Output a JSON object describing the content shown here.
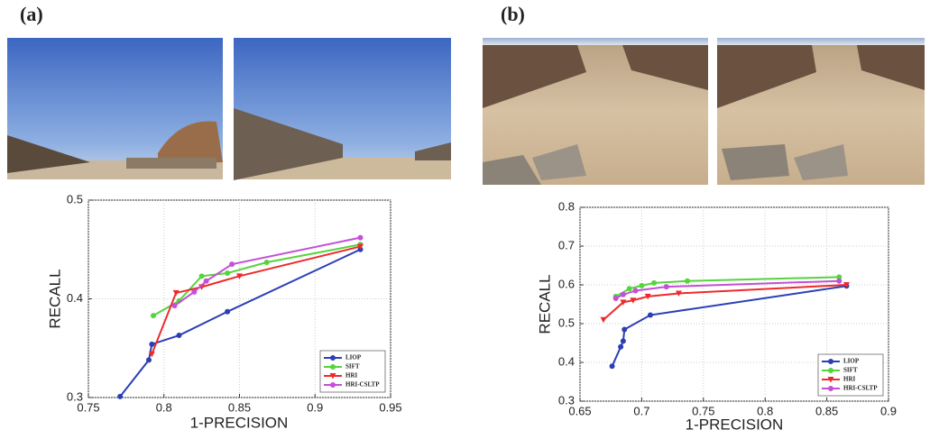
{
  "chart_data": [
    {
      "type": "line",
      "panel_label": "(a)",
      "xlabel": "1-PRECISION",
      "ylabel": "RECALL",
      "xlim": [
        0.75,
        0.95
      ],
      "xticks": [
        0.75,
        0.8,
        0.85,
        0.9,
        0.95
      ],
      "ylim": [
        0.3,
        0.5
      ],
      "yticks": [
        0.3,
        0.4,
        0.5
      ],
      "grid": true,
      "legend": "lower right",
      "series": [
        {
          "name": "LIOP",
          "color": "#2b3fb5",
          "marker": "circle",
          "x": [
            0.771,
            0.79,
            0.792,
            0.81,
            0.842,
            0.93
          ],
          "values": [
            0.301,
            0.338,
            0.354,
            0.363,
            0.387,
            0.45
          ]
        },
        {
          "name": "SIFT",
          "color": "#55d43c",
          "marker": "circle",
          "x": [
            0.793,
            0.81,
            0.825,
            0.842,
            0.868,
            0.93
          ],
          "values": [
            0.383,
            0.398,
            0.423,
            0.426,
            0.437,
            0.455
          ]
        },
        {
          "name": "HRI",
          "color": "#ee2a2a",
          "marker": "triangle",
          "x": [
            0.792,
            0.808,
            0.825,
            0.85,
            0.93
          ],
          "values": [
            0.344,
            0.406,
            0.412,
            0.423,
            0.453
          ]
        },
        {
          "name": "HRI-CSLTP",
          "color": "#c44fd8",
          "marker": "circle",
          "x": [
            0.807,
            0.82,
            0.828,
            0.845,
            0.93
          ],
          "values": [
            0.393,
            0.407,
            0.418,
            0.435,
            0.462
          ]
        }
      ]
    },
    {
      "type": "line",
      "panel_label": "(b)",
      "xlabel": "1-PRECISION",
      "ylabel": "RECALL",
      "xlim": [
        0.65,
        0.9
      ],
      "xticks": [
        0.65,
        0.7,
        0.75,
        0.8,
        0.85,
        0.9
      ],
      "ylim": [
        0.3,
        0.8
      ],
      "yticks": [
        0.3,
        0.4,
        0.5,
        0.6,
        0.7,
        0.8
      ],
      "grid": true,
      "legend": "lower right",
      "series": [
        {
          "name": "LIOP",
          "color": "#2b3fb5",
          "marker": "circle",
          "x": [
            0.676,
            0.683,
            0.685,
            0.686,
            0.707,
            0.866
          ],
          "values": [
            0.39,
            0.44,
            0.455,
            0.485,
            0.522,
            0.597
          ]
        },
        {
          "name": "SIFT",
          "color": "#55d43c",
          "marker": "circle",
          "x": [
            0.679,
            0.69,
            0.7,
            0.71,
            0.737,
            0.86
          ],
          "values": [
            0.57,
            0.59,
            0.598,
            0.605,
            0.61,
            0.62
          ]
        },
        {
          "name": "HRI",
          "color": "#ee2a2a",
          "marker": "triangle",
          "x": [
            0.669,
            0.685,
            0.693,
            0.705,
            0.73,
            0.866
          ],
          "values": [
            0.51,
            0.555,
            0.56,
            0.57,
            0.578,
            0.6
          ]
        },
        {
          "name": "HRI-CSLTP",
          "color": "#c44fd8",
          "marker": "circle",
          "x": [
            0.679,
            0.685,
            0.695,
            0.72,
            0.86
          ],
          "values": [
            0.565,
            0.575,
            0.585,
            0.595,
            0.61
          ]
        }
      ]
    }
  ]
}
